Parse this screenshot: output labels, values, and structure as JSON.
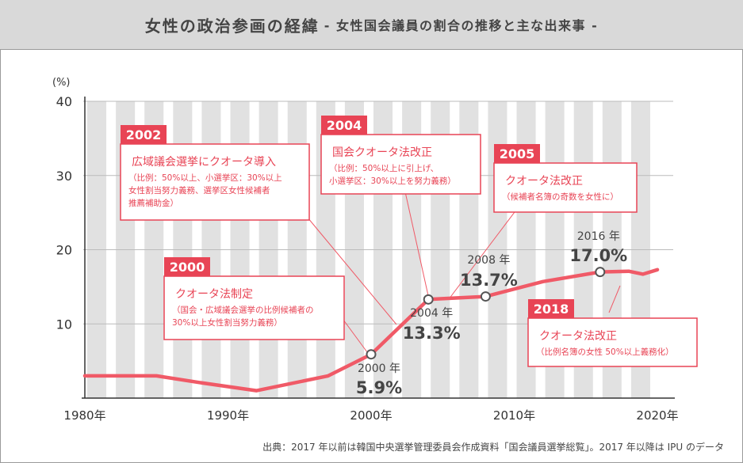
{
  "title": {
    "main": "女性の政治参画の経緯",
    "sub": "- 女性国会議員の割合の推移と主な出来事 -"
  },
  "source": "出典：2017 年以前は韓国中央選挙管理委員会作成資料「国会議員選挙総覧」。2017 年以降は IPU のデータ",
  "colors": {
    "line": "#f05a67",
    "stripe": "#e1e1e1",
    "accent": "#e84455",
    "grid": "#bbbbbb"
  },
  "chart_data": {
    "type": "line",
    "title": "女性国会議員の割合の推移と主な出来事",
    "ylabel": "(%)",
    "ylim": [
      0,
      40
    ],
    "xlim": [
      1980,
      2020
    ],
    "yticks": [
      10,
      20,
      30,
      40
    ],
    "xticks": [
      "1980年",
      "1990年",
      "2000年",
      "2010年",
      "2020年"
    ],
    "grid": true,
    "series": [
      {
        "x": [
          1980,
          1985,
          1988,
          1992,
          1997,
          2000,
          2004,
          2008,
          2012,
          2016,
          2018,
          2019,
          2020
        ],
        "y": [
          3.0,
          3.0,
          2.1,
          1.0,
          3.0,
          5.9,
          13.3,
          13.7,
          15.7,
          17.0,
          17.1,
          16.7,
          17.3
        ]
      }
    ],
    "highlighted_points": [
      {
        "year": 2000,
        "value": 5.9,
        "year_label": "2000 年",
        "value_label": "5.9%"
      },
      {
        "year": 2004,
        "value": 13.3,
        "year_label": "2004 年",
        "value_label": "13.3%"
      },
      {
        "year": 2008,
        "value": 13.7,
        "year_label": "2008 年",
        "value_label": "13.7%"
      },
      {
        "year": 2016,
        "value": 17.0,
        "year_label": "2016 年",
        "value_label": "17.0%"
      }
    ],
    "annotations": [
      {
        "tag": "2002",
        "heading": "広域議会選挙にクオータ導入",
        "lines": [
          "（比例：50%以上、小選挙区：30%以上",
          "女性割当努力義務、選挙区女性候補者",
          "推薦補助金）"
        ]
      },
      {
        "tag": "2004",
        "heading": "国会クオータ法改正",
        "lines": [
          "（比例：50%以上に引上げ、",
          "小選挙区：30%以上を努力義務）"
        ]
      },
      {
        "tag": "2005",
        "heading": "クオータ法改正",
        "lines": [
          "（候補者名簿の奇数を女性に）"
        ]
      },
      {
        "tag": "2000",
        "heading": "クオータ法制定",
        "lines": [
          "（国会・広域議会選挙の比例候補者の",
          "30%以上女性割当努力義務）"
        ]
      },
      {
        "tag": "2018",
        "heading": "クオータ法改正",
        "lines": [
          "（比例名簿の女性 50%以上義務化）"
        ]
      }
    ]
  }
}
